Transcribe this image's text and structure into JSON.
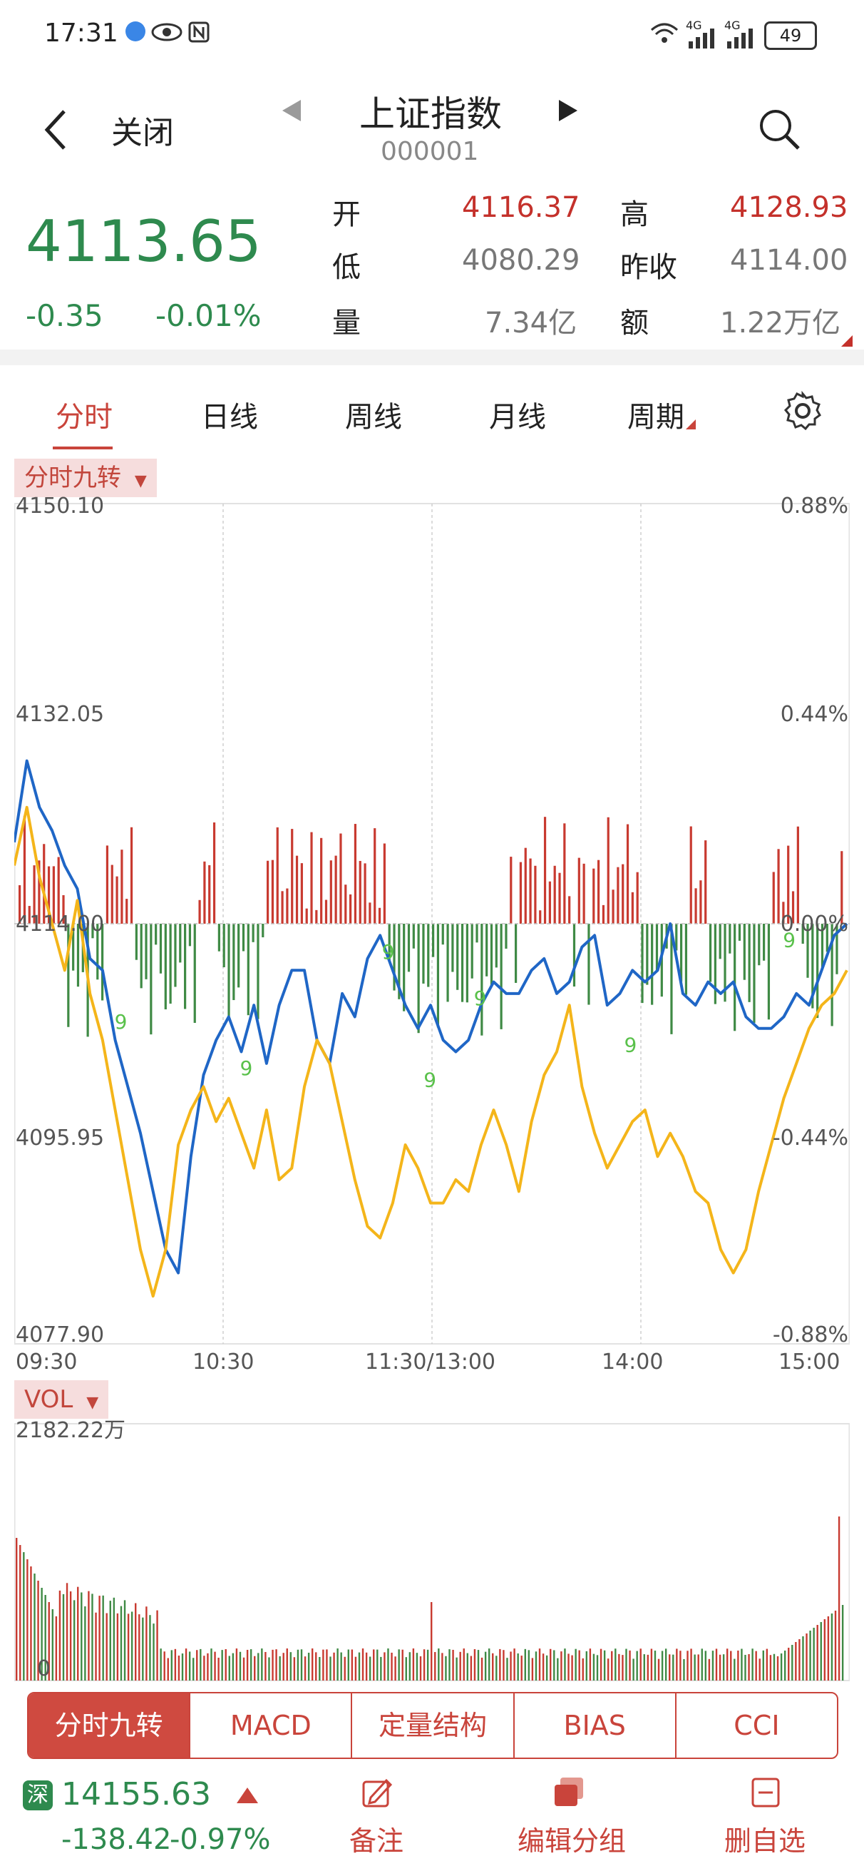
{
  "status_bar": {
    "time": "17:31",
    "battery": "49",
    "net1": "4G",
    "net2": "4G"
  },
  "nav": {
    "back_icon": "chevron-left-icon",
    "close_label": "关闭",
    "title": "上证指数",
    "code": "000001"
  },
  "quote": {
    "price": "4113.65",
    "change": "-0.35",
    "change_pct": "-0.01%",
    "open_label": "开",
    "open": "4116.37",
    "high_label": "高",
    "high": "4128.93",
    "low_label": "低",
    "low": "4080.29",
    "prev_close_label": "昨收",
    "prev_close": "4114.00",
    "volume_label": "量",
    "volume": "7.34亿",
    "amount_label": "额",
    "amount": "1.22万亿",
    "colors": {
      "up": "#c4312b",
      "down": "#2e8a4e"
    }
  },
  "tabs": [
    "分时",
    "日线",
    "周线",
    "月线",
    "周期"
  ],
  "active_tab": "分时",
  "indicator_chip": "分时九转",
  "vol_chip": "VOL",
  "chart_data": {
    "type": "line",
    "y_left_ticks": [
      "4150.10",
      "4132.05",
      "4114.00",
      "4095.95",
      "4077.90"
    ],
    "y_right_ticks": [
      "0.88%",
      "0.44%",
      "0.00%",
      "-0.44%",
      "-0.88%"
    ],
    "x_ticks": [
      "09:30",
      "10:30",
      "11:30/13:00",
      "14:00",
      "15:00"
    ],
    "ylim": [
      4077.9,
      4150.1
    ],
    "prev_close": 4114.0,
    "series": [
      {
        "name": "index",
        "color": "#1f66c6",
        "values": [
          4121,
          4128,
          4124,
          4122,
          4119,
          4117,
          4111,
          4110,
          4104,
          4100,
          4096,
          4091,
          4086,
          4084,
          4094,
          4101,
          4104,
          4106,
          4103,
          4107,
          4102,
          4107,
          4110,
          4110,
          4104,
          4102,
          4108,
          4106,
          4111,
          4113,
          4110,
          4107,
          4105,
          4107,
          4104,
          4103,
          4104,
          4107,
          4109,
          4108,
          4108,
          4110,
          4111,
          4108,
          4109,
          4112,
          4113,
          4107,
          4108,
          4110,
          4109,
          4110,
          4114,
          4108,
          4107,
          4109,
          4108,
          4109,
          4106,
          4105,
          4105,
          4106,
          4108,
          4107,
          4110,
          4113,
          4114
        ]
      },
      {
        "name": "average",
        "color": "#f4b51a",
        "values": [
          4119,
          4124,
          4118,
          4114,
          4110,
          4116,
          4108,
          4104,
          4098,
          4092,
          4086,
          4082,
          4086,
          4095,
          4098,
          4100,
          4097,
          4099,
          4096,
          4093,
          4098,
          4092,
          4093,
          4100,
          4104,
          4102,
          4097,
          4092,
          4088,
          4087,
          4090,
          4095,
          4093,
          4090,
          4090,
          4092,
          4091,
          4095,
          4098,
          4095,
          4091,
          4097,
          4101,
          4103,
          4107,
          4100,
          4096,
          4093,
          4095,
          4097,
          4098,
          4094,
          4096,
          4094,
          4091,
          4090,
          4086,
          4084,
          4086,
          4091,
          4095,
          4099,
          4102,
          4105,
          4107,
          4108,
          4110
        ]
      }
    ],
    "vol_max_label": "2182.22万",
    "vol_zero_label": "0"
  },
  "pills": [
    "分时九转",
    "MACD",
    "定量结构",
    "BIAS",
    "CCI"
  ],
  "bottom": {
    "market_tag": "深",
    "index_value": "14155.63",
    "index_change": "-138.42",
    "index_change_pct": "-0.97%",
    "actions": [
      {
        "label": "备注",
        "icon": "edit-note-icon"
      },
      {
        "label": "编辑分组",
        "icon": "group-cards-icon"
      },
      {
        "label": "删自选",
        "icon": "remove-watchlist-icon"
      }
    ]
  }
}
